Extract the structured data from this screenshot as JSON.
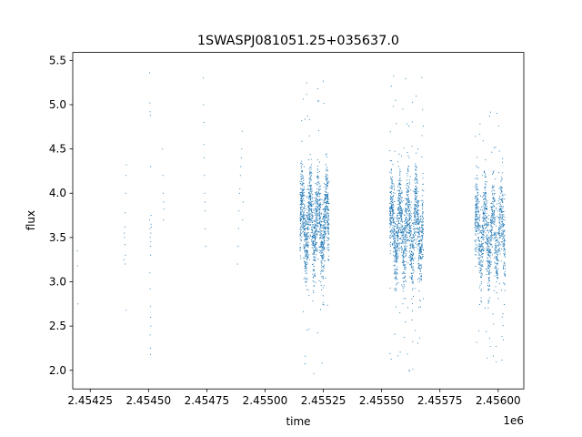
{
  "chart_data": {
    "type": "scatter",
    "title": "1SWASPJ081051.25+035637.0",
    "xlabel": "time",
    "ylabel": "flux",
    "x_offset_label": "1e6",
    "xlim": [
      2454175,
      2456110
    ],
    "ylim": [
      1.79,
      5.59
    ],
    "x_ticks": [
      2454250,
      2454500,
      2454750,
      2455000,
      2455250,
      2455500,
      2455750,
      2456000
    ],
    "x_tick_labels": [
      "2.45425",
      "2.45450",
      "2.45475",
      "2.45500",
      "2.45525",
      "2.45550",
      "2.45575",
      "2.45600"
    ],
    "y_ticks": [
      2.0,
      2.5,
      3.0,
      3.5,
      4.0,
      4.5,
      5.0,
      5.5
    ],
    "y_tick_labels": [
      "2.0",
      "2.5",
      "3.0",
      "3.5",
      "4.0",
      "4.5",
      "5.0",
      "5.5"
    ],
    "grid": false,
    "marker_color": "#1f77b4",
    "series": [
      {
        "points": [
          [
            2454195,
            3.35
          ],
          [
            2454196,
            3.18
          ],
          [
            2454197,
            2.75
          ],
          [
            2454395,
            3.25
          ],
          [
            2454397,
            3.5
          ],
          [
            2454398,
            3.62
          ],
          [
            2454400,
            3.78
          ],
          [
            2454402,
            4.0
          ],
          [
            2454403,
            4.2
          ],
          [
            2454405,
            4.32
          ],
          [
            2454399,
            3.42
          ],
          [
            2454401,
            3.3
          ],
          [
            2454404,
            2.68
          ],
          [
            2454396,
            3.55
          ],
          [
            2454400,
            3.2
          ],
          [
            2454505,
            5.36
          ],
          [
            2454506,
            5.02
          ],
          [
            2454507,
            4.92
          ],
          [
            2454508,
            4.88
          ],
          [
            2454509,
            4.3
          ],
          [
            2454505,
            3.7
          ],
          [
            2454506,
            3.6
          ],
          [
            2454507,
            3.5
          ],
          [
            2454508,
            3.4
          ],
          [
            2454509,
            3.3
          ],
          [
            2454510,
            3.55
          ],
          [
            2454511,
            3.65
          ],
          [
            2454512,
            3.62
          ],
          [
            2454506,
            3.1
          ],
          [
            2454507,
            2.92
          ],
          [
            2454508,
            2.72
          ],
          [
            2454509,
            2.6
          ],
          [
            2454510,
            2.5
          ],
          [
            2454507,
            2.4
          ],
          [
            2454508,
            2.25
          ],
          [
            2454509,
            2.18
          ],
          [
            2454510,
            3.45
          ],
          [
            2454511,
            3.75
          ],
          [
            2454560,
            4.5
          ],
          [
            2454562,
            4.2
          ],
          [
            2454563,
            4.0
          ],
          [
            2454565,
            3.9
          ],
          [
            2454566,
            3.82
          ],
          [
            2454564,
            3.7
          ],
          [
            2454735,
            5.3
          ],
          [
            2454736,
            5.0
          ],
          [
            2454737,
            4.8
          ],
          [
            2454738,
            4.55
          ],
          [
            2454739,
            4.4
          ],
          [
            2454740,
            4.2
          ],
          [
            2454741,
            4.0
          ],
          [
            2454742,
            3.9
          ],
          [
            2454743,
            3.8
          ],
          [
            2454744,
            3.6
          ],
          [
            2454745,
            3.4
          ],
          [
            2454882,
            3.2
          ],
          [
            2454884,
            3.4
          ],
          [
            2454886,
            3.6
          ],
          [
            2454888,
            3.8
          ],
          [
            2454890,
            4.0
          ],
          [
            2454892,
            4.05
          ],
          [
            2454894,
            4.2
          ],
          [
            2454896,
            4.3
          ],
          [
            2454898,
            4.4
          ],
          [
            2454900,
            4.5
          ],
          [
            2454902,
            4.7
          ],
          [
            2454904,
            3.7
          ],
          [
            2454906,
            3.9
          ]
        ]
      }
    ],
    "dense_clusters": [
      {
        "x_start": 2455150,
        "x_end": 2455275,
        "count": 1400,
        "y_center": 3.65,
        "y_spread": 0.22,
        "y_min": 1.95,
        "y_max": 5.35
      },
      {
        "x_start": 2455535,
        "x_end": 2455680,
        "count": 1500,
        "y_center": 3.6,
        "y_spread": 0.22,
        "y_min": 1.95,
        "y_max": 5.4
      },
      {
        "x_start": 2455900,
        "x_end": 2456030,
        "count": 1100,
        "y_center": 3.55,
        "y_spread": 0.22,
        "y_min": 2.05,
        "y_max": 4.95
      }
    ]
  }
}
